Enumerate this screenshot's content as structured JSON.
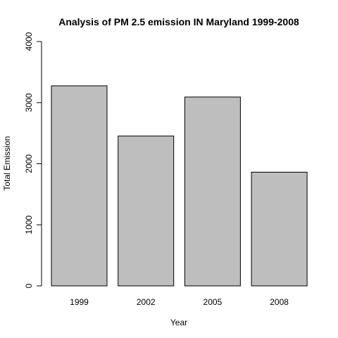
{
  "chart_data": {
    "type": "bar",
    "title": "Analysis of PM 2.5 emission IN Maryland 1999-2008",
    "xlabel": "Year",
    "ylabel": "Total Emission",
    "categories": [
      "1999",
      "2002",
      "2005",
      "2008"
    ],
    "values": [
      3275,
      2454,
      3092,
      1862
    ],
    "ylim": [
      0,
      4000
    ],
    "yticks": [
      0,
      1000,
      2000,
      3000,
      4000
    ],
    "ytick_labels": [
      "0",
      "1000",
      "2000",
      "3000",
      "4000"
    ],
    "grid": false,
    "legend": "none",
    "bar_color": "#bebebe",
    "bar_border_color": "#000000"
  }
}
